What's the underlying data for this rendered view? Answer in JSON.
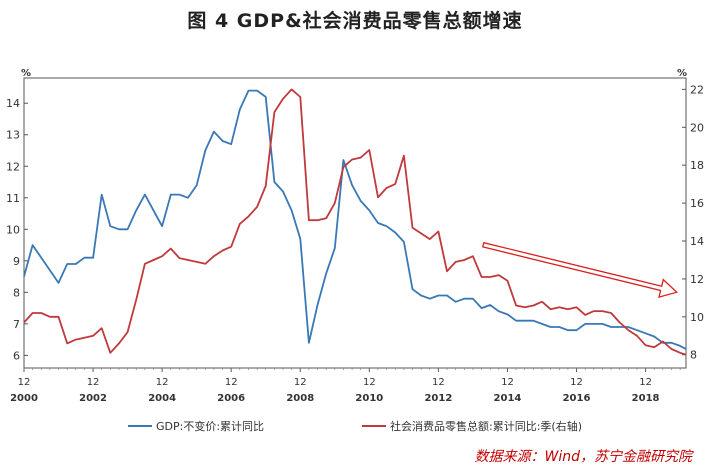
{
  "title": "图 4   GDP&社会消费品零售总额增速",
  "source_note": "数据来源：Wind，苏宁金融研究院",
  "chart_data": {
    "type": "line",
    "title": "GDP&社会消费品零售总额增速",
    "left_axis": {
      "unit": "%",
      "min": 5.6,
      "max": 14.8,
      "ticks": [
        6,
        7,
        8,
        9,
        10,
        11,
        12,
        13,
        14
      ]
    },
    "right_axis": {
      "unit": "%",
      "min": 7.3,
      "max": 22.6,
      "ticks": [
        8,
        10,
        12,
        14,
        16,
        18,
        20,
        22
      ]
    },
    "x_range": [
      2000.0,
      2019.17
    ],
    "x_ticks": [
      {
        "year": 2000,
        "month": "12",
        "label": "2000"
      },
      {
        "year": 2002,
        "month": "12",
        "label": "2002"
      },
      {
        "year": 2004,
        "month": "12",
        "label": "2004"
      },
      {
        "year": 2006,
        "month": "12",
        "label": "2006"
      },
      {
        "year": 2008,
        "month": "12",
        "label": "2008"
      },
      {
        "year": 2010,
        "month": "12",
        "label": "2010"
      },
      {
        "year": 2012,
        "month": "12",
        "label": "2012"
      },
      {
        "year": 2014,
        "month": "12",
        "label": "2014"
      },
      {
        "year": 2016,
        "month": "12",
        "label": "2016"
      },
      {
        "year": 2018,
        "month": "12",
        "label": "2018"
      }
    ],
    "series": [
      {
        "name": "GDP:不变价:累计同比",
        "axis": "left",
        "color": "#3a78b5",
        "points": [
          [
            2000.0,
            8.5
          ],
          [
            2000.25,
            9.5
          ],
          [
            2000.5,
            9.1
          ],
          [
            2000.75,
            8.7
          ],
          [
            2001.0,
            8.3
          ],
          [
            2001.25,
            8.9
          ],
          [
            2001.5,
            8.9
          ],
          [
            2001.75,
            9.1
          ],
          [
            2002.0,
            9.1
          ],
          [
            2002.25,
            11.1
          ],
          [
            2002.5,
            10.1
          ],
          [
            2002.75,
            10.0
          ],
          [
            2003.0,
            10.0
          ],
          [
            2003.25,
            10.6
          ],
          [
            2003.5,
            11.1
          ],
          [
            2003.75,
            10.6
          ],
          [
            2004.0,
            10.1
          ],
          [
            2004.25,
            11.1
          ],
          [
            2004.5,
            11.1
          ],
          [
            2004.75,
            11.0
          ],
          [
            2005.0,
            11.4
          ],
          [
            2005.25,
            12.5
          ],
          [
            2005.5,
            13.1
          ],
          [
            2005.75,
            12.8
          ],
          [
            2006.0,
            12.7
          ],
          [
            2006.25,
            13.8
          ],
          [
            2006.5,
            14.4
          ],
          [
            2006.75,
            14.4
          ],
          [
            2007.0,
            14.2
          ],
          [
            2007.25,
            11.5
          ],
          [
            2007.5,
            11.2
          ],
          [
            2007.75,
            10.6
          ],
          [
            2008.0,
            9.7
          ],
          [
            2008.25,
            6.4
          ],
          [
            2008.5,
            7.6
          ],
          [
            2008.75,
            8.6
          ],
          [
            2009.0,
            9.4
          ],
          [
            2009.25,
            12.2
          ],
          [
            2009.5,
            11.4
          ],
          [
            2009.75,
            10.9
          ],
          [
            2010.0,
            10.6
          ],
          [
            2010.25,
            10.2
          ],
          [
            2010.5,
            10.1
          ],
          [
            2010.75,
            9.9
          ],
          [
            2011.0,
            9.6
          ],
          [
            2011.25,
            8.1
          ],
          [
            2011.5,
            7.9
          ],
          [
            2011.75,
            7.8
          ],
          [
            2012.0,
            7.9
          ],
          [
            2012.25,
            7.9
          ],
          [
            2012.5,
            7.7
          ],
          [
            2012.75,
            7.8
          ],
          [
            2013.0,
            7.8
          ],
          [
            2013.25,
            7.5
          ],
          [
            2013.5,
            7.6
          ],
          [
            2013.75,
            7.4
          ],
          [
            2014.0,
            7.3
          ],
          [
            2014.25,
            7.1
          ],
          [
            2014.5,
            7.1
          ],
          [
            2014.75,
            7.1
          ],
          [
            2015.0,
            7.0
          ],
          [
            2015.25,
            6.9
          ],
          [
            2015.5,
            6.9
          ],
          [
            2015.75,
            6.8
          ],
          [
            2016.0,
            6.8
          ],
          [
            2016.25,
            7.0
          ],
          [
            2016.5,
            7.0
          ],
          [
            2016.75,
            7.0
          ],
          [
            2017.0,
            6.9
          ],
          [
            2017.25,
            6.9
          ],
          [
            2017.5,
            6.9
          ],
          [
            2017.75,
            6.8
          ],
          [
            2018.0,
            6.7
          ],
          [
            2018.25,
            6.6
          ],
          [
            2018.5,
            6.4
          ],
          [
            2018.75,
            6.4
          ],
          [
            2019.0,
            6.3
          ],
          [
            2019.17,
            6.2
          ]
        ]
      },
      {
        "name": "社会消费品零售总额:累计同比:季(右轴)",
        "axis": "right",
        "color": "#c0393b",
        "points": [
          [
            2000.0,
            9.7
          ],
          [
            2000.25,
            10.2
          ],
          [
            2000.5,
            10.2
          ],
          [
            2000.75,
            10.0
          ],
          [
            2001.0,
            10.0
          ],
          [
            2001.25,
            8.6
          ],
          [
            2001.5,
            8.8
          ],
          [
            2001.75,
            8.9
          ],
          [
            2002.0,
            9.0
          ],
          [
            2002.25,
            9.4
          ],
          [
            2002.5,
            8.1
          ],
          [
            2002.75,
            8.6
          ],
          [
            2003.0,
            9.2
          ],
          [
            2003.25,
            10.9
          ],
          [
            2003.5,
            12.8
          ],
          [
            2003.75,
            13.0
          ],
          [
            2004.0,
            13.2
          ],
          [
            2004.25,
            13.6
          ],
          [
            2004.5,
            13.1
          ],
          [
            2004.75,
            13.0
          ],
          [
            2005.0,
            12.9
          ],
          [
            2005.25,
            12.8
          ],
          [
            2005.5,
            13.2
          ],
          [
            2005.75,
            13.5
          ],
          [
            2006.0,
            13.7
          ],
          [
            2006.25,
            14.9
          ],
          [
            2006.5,
            15.3
          ],
          [
            2006.75,
            15.8
          ],
          [
            2007.0,
            16.9
          ],
          [
            2007.25,
            20.8
          ],
          [
            2007.5,
            21.5
          ],
          [
            2007.75,
            22.0
          ],
          [
            2008.0,
            21.6
          ],
          [
            2008.25,
            15.1
          ],
          [
            2008.5,
            15.1
          ],
          [
            2008.75,
            15.2
          ],
          [
            2009.0,
            16.0
          ],
          [
            2009.25,
            17.9
          ],
          [
            2009.5,
            18.3
          ],
          [
            2009.75,
            18.4
          ],
          [
            2010.0,
            18.8
          ],
          [
            2010.25,
            16.3
          ],
          [
            2010.5,
            16.8
          ],
          [
            2010.75,
            17.0
          ],
          [
            2011.0,
            18.5
          ],
          [
            2011.25,
            14.7
          ],
          [
            2011.5,
            14.4
          ],
          [
            2011.75,
            14.1
          ],
          [
            2012.0,
            14.5
          ],
          [
            2012.25,
            12.4
          ],
          [
            2012.5,
            12.9
          ],
          [
            2012.75,
            13.0
          ],
          [
            2013.0,
            13.2
          ],
          [
            2013.25,
            12.1
          ],
          [
            2013.5,
            12.1
          ],
          [
            2013.75,
            12.2
          ],
          [
            2014.0,
            11.9
          ],
          [
            2014.25,
            10.6
          ],
          [
            2014.5,
            10.5
          ],
          [
            2014.75,
            10.6
          ],
          [
            2015.0,
            10.8
          ],
          [
            2015.25,
            10.4
          ],
          [
            2015.5,
            10.5
          ],
          [
            2015.75,
            10.4
          ],
          [
            2016.0,
            10.5
          ],
          [
            2016.25,
            10.1
          ],
          [
            2016.5,
            10.3
          ],
          [
            2016.75,
            10.3
          ],
          [
            2017.0,
            10.2
          ],
          [
            2017.25,
            9.7
          ],
          [
            2017.5,
            9.3
          ],
          [
            2017.75,
            9.0
          ],
          [
            2018.0,
            8.5
          ],
          [
            2018.25,
            8.4
          ],
          [
            2018.5,
            8.7
          ],
          [
            2018.75,
            8.3
          ],
          [
            2019.0,
            8.1
          ],
          [
            2019.17,
            8.0
          ]
        ]
      }
    ],
    "annotation": {
      "type": "arrow",
      "color": "#d9201f",
      "from": [
        2013.3,
        13.8
      ],
      "to": [
        2018.9,
        11.3
      ]
    },
    "legend": {
      "placement": "bottom"
    },
    "grid": false
  }
}
